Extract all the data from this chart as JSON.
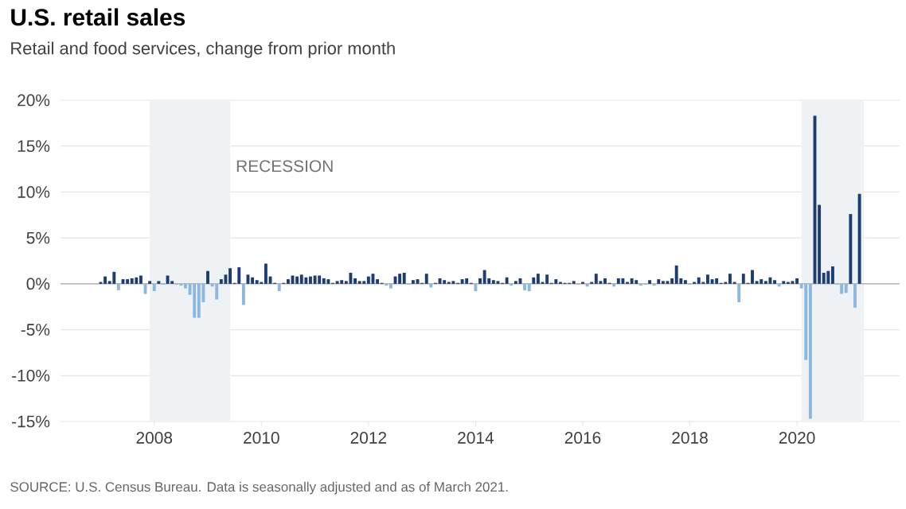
{
  "chart_data": {
    "type": "bar",
    "title": "U.S. retail sales",
    "subtitle": "Retail and food services, change from prior month",
    "annotations": [
      "SOURCE: U.S. Census Bureau. Data is seasonally adjusted and as of March 2021."
    ],
    "x": [
      "2007-01",
      "2007-02",
      "2007-03",
      "2007-04",
      "2007-05",
      "2007-06",
      "2007-07",
      "2007-08",
      "2007-09",
      "2007-10",
      "2007-11",
      "2007-12",
      "2008-01",
      "2008-02",
      "2008-03",
      "2008-04",
      "2008-05",
      "2008-06",
      "2008-07",
      "2008-08",
      "2008-09",
      "2008-10",
      "2008-11",
      "2008-12",
      "2009-01",
      "2009-02",
      "2009-03",
      "2009-04",
      "2009-05",
      "2009-06",
      "2009-07",
      "2009-08",
      "2009-09",
      "2009-10",
      "2009-11",
      "2009-12",
      "2010-01",
      "2010-02",
      "2010-03",
      "2010-04",
      "2010-05",
      "2010-06",
      "2010-07",
      "2010-08",
      "2010-09",
      "2010-10",
      "2010-11",
      "2010-12",
      "2011-01",
      "2011-02",
      "2011-03",
      "2011-04",
      "2011-05",
      "2011-06",
      "2011-07",
      "2011-08",
      "2011-09",
      "2011-10",
      "2011-11",
      "2011-12",
      "2012-01",
      "2012-02",
      "2012-03",
      "2012-04",
      "2012-05",
      "2012-06",
      "2012-07",
      "2012-08",
      "2012-09",
      "2012-10",
      "2012-11",
      "2012-12",
      "2013-01",
      "2013-02",
      "2013-03",
      "2013-04",
      "2013-05",
      "2013-06",
      "2013-07",
      "2013-08",
      "2013-09",
      "2013-10",
      "2013-11",
      "2013-12",
      "2014-01",
      "2014-02",
      "2014-03",
      "2014-04",
      "2014-05",
      "2014-06",
      "2014-07",
      "2014-08",
      "2014-09",
      "2014-10",
      "2014-11",
      "2014-12",
      "2015-01",
      "2015-02",
      "2015-03",
      "2015-04",
      "2015-05",
      "2015-06",
      "2015-07",
      "2015-08",
      "2015-09",
      "2015-10",
      "2015-11",
      "2015-12",
      "2016-01",
      "2016-02",
      "2016-03",
      "2016-04",
      "2016-05",
      "2016-06",
      "2016-07",
      "2016-08",
      "2016-09",
      "2016-10",
      "2016-11",
      "2016-12",
      "2017-01",
      "2017-02",
      "2017-03",
      "2017-04",
      "2017-05",
      "2017-06",
      "2017-07",
      "2017-08",
      "2017-09",
      "2017-10",
      "2017-11",
      "2017-12",
      "2018-01",
      "2018-02",
      "2018-03",
      "2018-04",
      "2018-05",
      "2018-06",
      "2018-07",
      "2018-08",
      "2018-09",
      "2018-10",
      "2018-11",
      "2018-12",
      "2019-01",
      "2019-02",
      "2019-03",
      "2019-04",
      "2019-05",
      "2019-06",
      "2019-07",
      "2019-08",
      "2019-09",
      "2019-10",
      "2019-11",
      "2019-12",
      "2020-01",
      "2020-02",
      "2020-03",
      "2020-04",
      "2020-05",
      "2020-06",
      "2020-07",
      "2020-08",
      "2020-09",
      "2020-10",
      "2020-11",
      "2020-12",
      "2021-01",
      "2021-02",
      "2021-03"
    ],
    "values": [
      0.2,
      0.8,
      0.3,
      1.3,
      -0.7,
      0.5,
      0.5,
      0.6,
      0.7,
      0.9,
      -1.1,
      0.3,
      -0.8,
      0.3,
      -0.1,
      0.9,
      0.3,
      -0.1,
      -0.2,
      -0.5,
      -1.2,
      -3.7,
      -3.7,
      -2.0,
      1.4,
      -0.3,
      -1.7,
      0.5,
      1.0,
      1.7,
      0.1,
      1.8,
      -2.3,
      1.0,
      0.7,
      0.4,
      0.2,
      2.2,
      0.8,
      0.1,
      -0.8,
      0.1,
      0.5,
      0.9,
      0.8,
      1.0,
      0.7,
      0.8,
      0.9,
      0.9,
      0.6,
      0.5,
      0.1,
      0.3,
      0.4,
      0.3,
      1.2,
      0.6,
      0.3,
      0.3,
      0.8,
      1.1,
      0.5,
      0.1,
      -0.2,
      -0.5,
      0.8,
      1.1,
      1.2,
      -0.1,
      0.4,
      0.5,
      0.1,
      1.1,
      -0.4,
      0.1,
      0.6,
      0.4,
      0.2,
      0.3,
      0.1,
      0.5,
      0.6,
      0.1,
      -0.8,
      0.6,
      1.5,
      0.6,
      0.4,
      0.3,
      0.1,
      0.7,
      -0.2,
      0.3,
      0.6,
      -0.7,
      -0.8,
      0.7,
      1.1,
      0.2,
      1.0,
      0.1,
      0.5,
      0.2,
      0.1,
      0.1,
      0.3,
      -0.1,
      0.2,
      -0.3,
      0.2,
      1.1,
      0.3,
      0.6,
      0.1,
      -0.3,
      0.6,
      0.6,
      0.2,
      0.6,
      0.4,
      -0.2,
      -0.1,
      0.4,
      -0.2,
      0.5,
      0.3,
      0.3,
      0.6,
      2.0,
      0.6,
      0.4,
      -0.1,
      0.2,
      0.7,
      0.2,
      1.0,
      0.5,
      0.6,
      0.1,
      0.2,
      1.1,
      0.2,
      -2.0,
      1.1,
      0.1,
      1.5,
      0.3,
      0.5,
      0.3,
      0.7,
      0.4,
      -0.3,
      0.3,
      0.2,
      0.3,
      0.6,
      -0.5,
      -8.3,
      -14.7,
      18.3,
      8.6,
      1.2,
      1.4,
      1.9,
      -0.1,
      -1.1,
      -1.0,
      7.6,
      -2.6,
      9.8
    ],
    "colors": [
      "#1d3c74",
      "#1d3c74",
      "#1d3c74",
      "#1d3c74",
      "#8cb8df",
      "#1d3c74",
      "#1d3c74",
      "#1d3c74",
      "#1d3c74",
      "#1d3c74",
      "#8cb8df",
      "#1d3c74",
      "#8cb8df",
      "#1d3c74",
      "#8cb8df",
      "#1d3c74",
      "#1d3c74",
      "#8cb8df",
      "#8cb8df",
      "#8cb8df",
      "#8cb8df",
      "#8cb8df",
      "#8cb8df",
      "#8cb8df",
      "#1d3c74",
      "#8cb8df",
      "#8cb8df",
      "#1d3c74",
      "#1d3c74",
      "#1d3c74",
      "#1d3c74",
      "#1d3c74",
      "#8cb8df",
      "#1d3c74",
      "#1d3c74",
      "#1d3c74",
      "#1d3c74",
      "#1d3c74",
      "#1d3c74",
      "#1d3c74",
      "#8cb8df",
      "#1d3c74",
      "#1d3c74",
      "#1d3c74",
      "#1d3c74",
      "#1d3c74",
      "#1d3c74",
      "#1d3c74",
      "#1d3c74",
      "#1d3c74",
      "#1d3c74",
      "#1d3c74",
      "#1d3c74",
      "#1d3c74",
      "#1d3c74",
      "#1d3c74",
      "#1d3c74",
      "#1d3c74",
      "#1d3c74",
      "#1d3c74",
      "#1d3c74",
      "#1d3c74",
      "#1d3c74",
      "#1d3c74",
      "#8cb8df",
      "#8cb8df",
      "#1d3c74",
      "#1d3c74",
      "#1d3c74",
      "#8cb8df",
      "#1d3c74",
      "#1d3c74",
      "#1d3c74",
      "#1d3c74",
      "#8cb8df",
      "#1d3c74",
      "#1d3c74",
      "#1d3c74",
      "#1d3c74",
      "#1d3c74",
      "#1d3c74",
      "#1d3c74",
      "#1d3c74",
      "#1d3c74",
      "#8cb8df",
      "#1d3c74",
      "#1d3c74",
      "#1d3c74",
      "#1d3c74",
      "#1d3c74",
      "#1d3c74",
      "#1d3c74",
      "#8cb8df",
      "#1d3c74",
      "#1d3c74",
      "#8cb8df",
      "#8cb8df",
      "#1d3c74",
      "#1d3c74",
      "#1d3c74",
      "#1d3c74",
      "#1d3c74",
      "#1d3c74",
      "#1d3c74",
      "#1d3c74",
      "#1d3c74",
      "#1d3c74",
      "#8cb8df",
      "#1d3c74",
      "#8cb8df",
      "#1d3c74",
      "#1d3c74",
      "#1d3c74",
      "#1d3c74",
      "#1d3c74",
      "#8cb8df",
      "#1d3c74",
      "#1d3c74",
      "#1d3c74",
      "#1d3c74",
      "#1d3c74",
      "#8cb8df",
      "#8cb8df",
      "#1d3c74",
      "#8cb8df",
      "#1d3c74",
      "#1d3c74",
      "#1d3c74",
      "#1d3c74",
      "#1d3c74",
      "#1d3c74",
      "#1d3c74",
      "#8cb8df",
      "#1d3c74",
      "#1d3c74",
      "#1d3c74",
      "#1d3c74",
      "#1d3c74",
      "#1d3c74",
      "#1d3c74",
      "#1d3c74",
      "#1d3c74",
      "#1d3c74",
      "#8cb8df",
      "#1d3c74",
      "#1d3c74",
      "#1d3c74",
      "#1d3c74",
      "#1d3c74",
      "#1d3c74",
      "#1d3c74",
      "#1d3c74",
      "#8cb8df",
      "#1d3c74",
      "#1d3c74",
      "#1d3c74",
      "#1d3c74",
      "#8cb8df",
      "#8cb8df",
      "#8cb8df",
      "#1d3c74",
      "#1d3c74",
      "#1d3c74",
      "#1d3c74",
      "#1d3c74",
      "#8cb8df",
      "#8cb8df",
      "#8cb8df",
      "#1d3c74",
      "#8cb8df",
      "#1d3c74"
    ],
    "xlim": [
      "2006-04",
      "2021-12"
    ],
    "ylim": [
      -15,
      20
    ],
    "xticks": [
      {
        "value": "2008",
        "label": "2008"
      },
      {
        "value": "2010",
        "label": "2010"
      },
      {
        "value": "2012",
        "label": "2012"
      },
      {
        "value": "2014",
        "label": "2014"
      },
      {
        "value": "2016",
        "label": "2016"
      },
      {
        "value": "2018",
        "label": "2018"
      },
      {
        "value": "2020",
        "label": "2020"
      }
    ],
    "yticks": [
      {
        "value": -15,
        "label": "-15%"
      },
      {
        "value": -10,
        "label": "-10%"
      },
      {
        "value": -5,
        "label": "-5%"
      },
      {
        "value": 0,
        "label": "0%"
      },
      {
        "value": 5,
        "label": "5%"
      },
      {
        "value": 10,
        "label": "10%"
      },
      {
        "value": 15,
        "label": "15%"
      },
      {
        "value": 20,
        "label": "20%"
      }
    ],
    "grid": "y",
    "bands": [
      {
        "axis": "x",
        "from": "2007-12",
        "to": "2009-06",
        "label": "RECESSION",
        "color": "#eef2f4"
      },
      {
        "axis": "x",
        "from": "2020-02",
        "to": "2021-04",
        "color": "#eef2f4"
      }
    ],
    "ref_lines": [
      {
        "axis": "y",
        "value": 0,
        "color": "#9a9a9a"
      }
    ]
  }
}
